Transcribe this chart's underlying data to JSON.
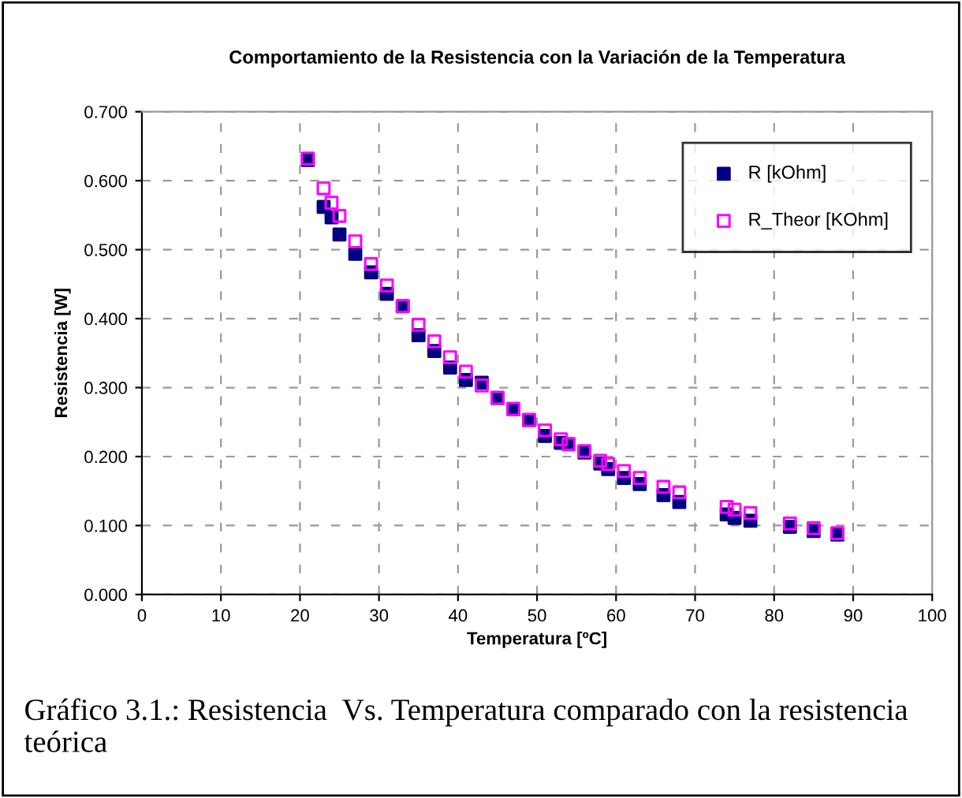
{
  "chart_data": {
    "type": "scatter",
    "title": "Comportamiento de la Resistencia con la Variación de la Temperatura",
    "xlabel": "Temperatura [ºC]",
    "ylabel": "Resistencia [W]",
    "x": [
      21,
      23,
      24,
      25,
      27,
      29,
      31,
      33,
      35,
      37,
      39,
      41,
      43,
      45,
      47,
      49,
      51,
      53,
      54,
      56,
      58,
      59,
      61,
      63,
      66,
      68,
      74,
      75,
      77,
      82,
      85,
      88
    ],
    "series": [
      {
        "name": "R [kOhm]",
        "color": "#000080",
        "marker": "square",
        "values": [
          0.63,
          0.562,
          0.547,
          0.522,
          0.494,
          0.467,
          0.436,
          0.418,
          0.376,
          0.353,
          0.329,
          0.311,
          0.307,
          0.285,
          0.269,
          0.253,
          0.23,
          0.22,
          0.218,
          0.206,
          0.19,
          0.182,
          0.169,
          0.16,
          0.144,
          0.134,
          0.116,
          0.111,
          0.107,
          0.098,
          0.092,
          0.087
        ]
      },
      {
        "name": "R_Theor [KOhm]",
        "color": "#ff00ff",
        "marker": "square_open",
        "values": [
          0.632,
          0.589,
          0.568,
          0.549,
          0.512,
          0.479,
          0.448,
          0.418,
          0.391,
          0.367,
          0.344,
          0.323,
          0.303,
          0.285,
          0.269,
          0.253,
          0.238,
          0.225,
          0.218,
          0.208,
          0.194,
          0.189,
          0.179,
          0.169,
          0.156,
          0.148,
          0.127,
          0.123,
          0.118,
          0.103,
          0.096,
          0.089
        ]
      }
    ],
    "xlim": [
      0,
      100
    ],
    "xticks": [
      0,
      10,
      20,
      30,
      40,
      50,
      60,
      70,
      80,
      90,
      100
    ],
    "ylim": [
      0,
      0.7
    ],
    "yticks": [
      {
        "value": 0,
        "label": "0.000"
      },
      {
        "value": 0.1,
        "label": "0.100"
      },
      {
        "value": 0.2,
        "label": "0.200"
      },
      {
        "value": 0.3,
        "label": "0.300"
      },
      {
        "value": 0.4,
        "label": "0.400"
      },
      {
        "value": 0.5,
        "label": "0.500"
      },
      {
        "value": 0.6,
        "label": "0.600"
      },
      {
        "value": 0.7,
        "label": "0.700"
      }
    ],
    "grid": true,
    "legend": "top right",
    "annotations": [
      "Gráfico 3.1.: Resistencia  Vs. Temperatura comparado con la resistencia teórica"
    ]
  }
}
